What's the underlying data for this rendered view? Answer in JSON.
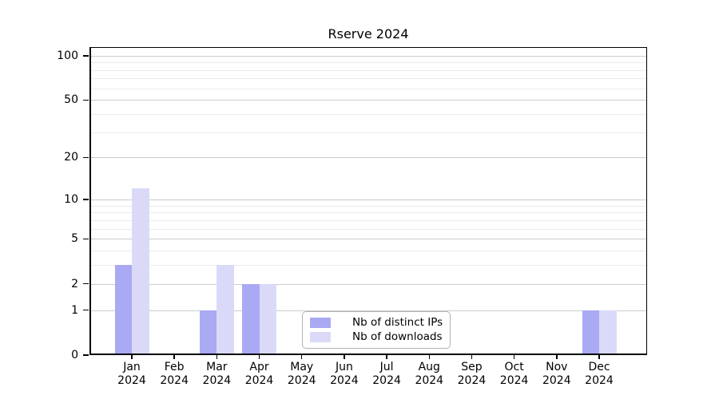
{
  "chart_data": {
    "type": "bar",
    "title": "Rserve 2024",
    "categories": [
      "Jan",
      "Feb",
      "Mar",
      "Apr",
      "May",
      "Jun",
      "Jul",
      "Aug",
      "Sep",
      "Oct",
      "Nov",
      "Dec"
    ],
    "category_year": "2024",
    "series": [
      {
        "name": "Nb of distinct IPs",
        "color": "#a9a9f4",
        "values": [
          3,
          0,
          1,
          2,
          0,
          0,
          0,
          0,
          0,
          0,
          0,
          1
        ]
      },
      {
        "name": "Nb of downloads",
        "color": "#dadaf8",
        "values": [
          12,
          0,
          3,
          2,
          0,
          0,
          0,
          0,
          0,
          0,
          0,
          1
        ]
      }
    ],
    "yscale": "log1p",
    "ytick_values": [
      0,
      1,
      2,
      5,
      10,
      20,
      50,
      100
    ],
    "minor_grid_values": [
      3,
      4,
      6,
      7,
      8,
      9,
      30,
      40,
      60,
      70,
      80,
      90
    ],
    "ylim": [
      0,
      115
    ],
    "grid": true,
    "legend_position": "bottom-center"
  },
  "colors": {
    "major_grid": "#cccccc",
    "minor_grid": "#ebebeb",
    "axis": "#000000",
    "background": "#ffffff"
  }
}
